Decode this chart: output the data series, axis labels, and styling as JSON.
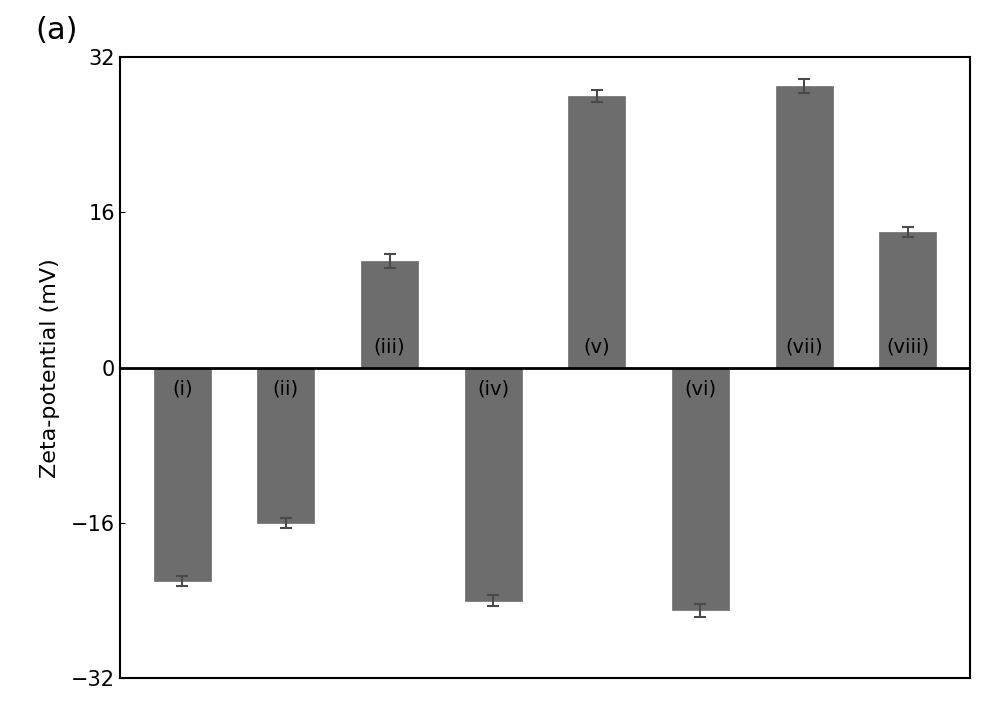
{
  "categories": [
    "(i)",
    "(ii)",
    "(iii)",
    "(iv)",
    "(v)",
    "(vi)",
    "(vii)",
    "(viii)"
  ],
  "values": [
    -22.0,
    -16.0,
    11.0,
    -24.0,
    28.0,
    -25.0,
    29.0,
    14.0
  ],
  "errors": [
    0.5,
    0.5,
    0.7,
    0.6,
    0.6,
    0.7,
    0.7,
    0.5
  ],
  "bar_color": "#6d6d6d",
  "bar_edge_color": "#6d6d6d",
  "ylabel": "Zeta-potential (mV)",
  "ylim": [
    -32,
    32
  ],
  "yticks": [
    -32,
    -16,
    0,
    16,
    32
  ],
  "panel_label": "(a)",
  "panel_label_fontsize": 22,
  "ylabel_fontsize": 16,
  "tick_fontsize": 15,
  "label_fontsize": 14,
  "background_color": "#ffffff",
  "bar_width": 0.55,
  "ecolor": "#4a4a4a",
  "capsize": 4,
  "elinewidth": 1.5,
  "axhline_lw": 2.0,
  "spine_lw": 1.5
}
